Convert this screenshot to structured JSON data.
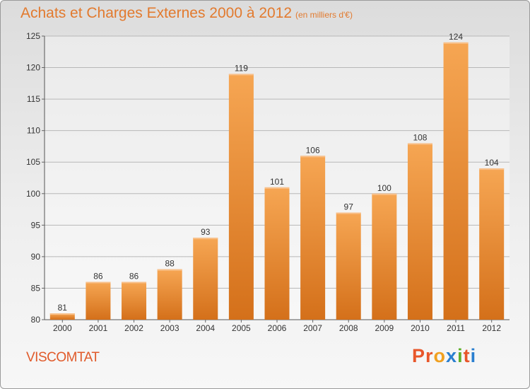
{
  "header": {
    "title": "Achats et Charges Externes 2000 à 2012",
    "unit": "(en milliers d'€)"
  },
  "footer": {
    "commune": "VISCOMTAT",
    "logo": "Proxiti",
    "logo_colors": [
      "#e8562a",
      "#e8562a",
      "#f0a020",
      "#2a7fd0",
      "#5fb02a",
      "#e8562a",
      "#2a7fd0"
    ]
  },
  "colors": {
    "bar_top": "#f6a653",
    "bar_bottom": "#d4701a",
    "grid": "#b8b8b8",
    "accent": "#e27a2e"
  },
  "chart_data": {
    "type": "bar",
    "title": "Achats et Charges Externes 2000 à 2012",
    "subtitle": "(en milliers d'€)",
    "categories": [
      "2000",
      "2001",
      "2002",
      "2003",
      "2004",
      "2005",
      "2006",
      "2007",
      "2008",
      "2009",
      "2010",
      "2011",
      "2012"
    ],
    "values": [
      81,
      86,
      86,
      88,
      93,
      119,
      101,
      106,
      97,
      100,
      108,
      124,
      104
    ],
    "ylim": [
      80,
      125
    ],
    "yticks": [
      80,
      85,
      90,
      95,
      100,
      105,
      110,
      115,
      120,
      125
    ],
    "grid": true,
    "data_labels": true
  }
}
